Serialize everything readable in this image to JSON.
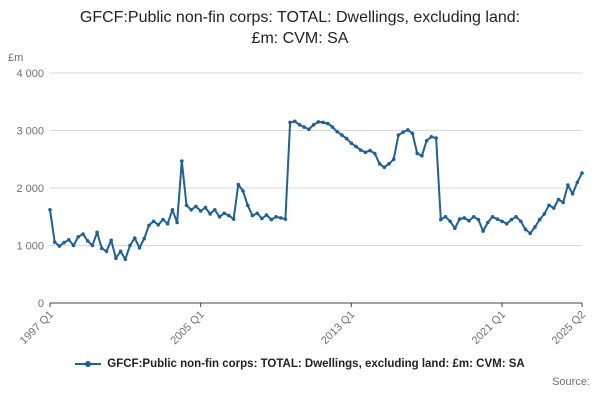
{
  "title": "GFCF:Public non-fin corps: TOTAL: Dwellings, excluding land: £m: CVM: SA",
  "y_axis_unit_label": "£m",
  "legend": {
    "label": "GFCF:Public non-fin corps: TOTAL: Dwellings, excluding land: £m: CVM: SA",
    "line_color": "#206095"
  },
  "source_label": "Source:",
  "chart_data": {
    "type": "line",
    "title": "GFCF:Public non-fin corps: TOTAL: Dwellings, excluding land: £m: CVM: SA",
    "xlabel": "",
    "ylabel": "£m",
    "ylim": [
      0,
      4000
    ],
    "grid": true,
    "legend_position": "bottom",
    "frequency": "quarterly",
    "x_start": "1997 Q1",
    "x_end": "2025 Q2",
    "line_color": "#206095",
    "grid_color": "#d9d9d9",
    "axis_color": "#404040",
    "tick_label_color": "#707071",
    "y_ticks": [
      {
        "value": 0,
        "label": "0"
      },
      {
        "value": 1000,
        "label": "1 000"
      },
      {
        "value": 2000,
        "label": "2 000"
      },
      {
        "value": 3000,
        "label": "3 000"
      },
      {
        "value": 4000,
        "label": "4 000"
      }
    ],
    "x_ticks": [
      {
        "index": 0,
        "label": "1997 Q1"
      },
      {
        "index": 32,
        "label": "2005 Q1"
      },
      {
        "index": 64,
        "label": "2013 Q1"
      },
      {
        "index": 96,
        "label": "2021 Q1"
      },
      {
        "index": 113,
        "label": "2025 Q2"
      }
    ],
    "values": [
      1620,
      1060,
      990,
      1050,
      1100,
      1000,
      1150,
      1200,
      1080,
      1000,
      1230,
      950,
      900,
      1090,
      780,
      900,
      760,
      1000,
      1130,
      960,
      1120,
      1350,
      1420,
      1360,
      1450,
      1380,
      1620,
      1400,
      2470,
      1700,
      1620,
      1680,
      1600,
      1660,
      1550,
      1620,
      1500,
      1560,
      1520,
      1460,
      2060,
      1950,
      1700,
      1520,
      1560,
      1470,
      1530,
      1450,
      1500,
      1480,
      1460,
      3140,
      3160,
      3100,
      3060,
      3020,
      3100,
      3150,
      3140,
      3120,
      3060,
      2980,
      2920,
      2860,
      2780,
      2720,
      2660,
      2620,
      2650,
      2600,
      2420,
      2360,
      2420,
      2500,
      2920,
      2970,
      3010,
      2950,
      2600,
      2560,
      2820,
      2890,
      2870,
      1450,
      1500,
      1420,
      1300,
      1460,
      1480,
      1430,
      1500,
      1450,
      1250,
      1400,
      1500,
      1460,
      1420,
      1380,
      1450,
      1500,
      1420,
      1280,
      1210,
      1320,
      1450,
      1550,
      1700,
      1650,
      1800,
      1750,
      2050,
      1900,
      2100,
      2260
    ]
  }
}
